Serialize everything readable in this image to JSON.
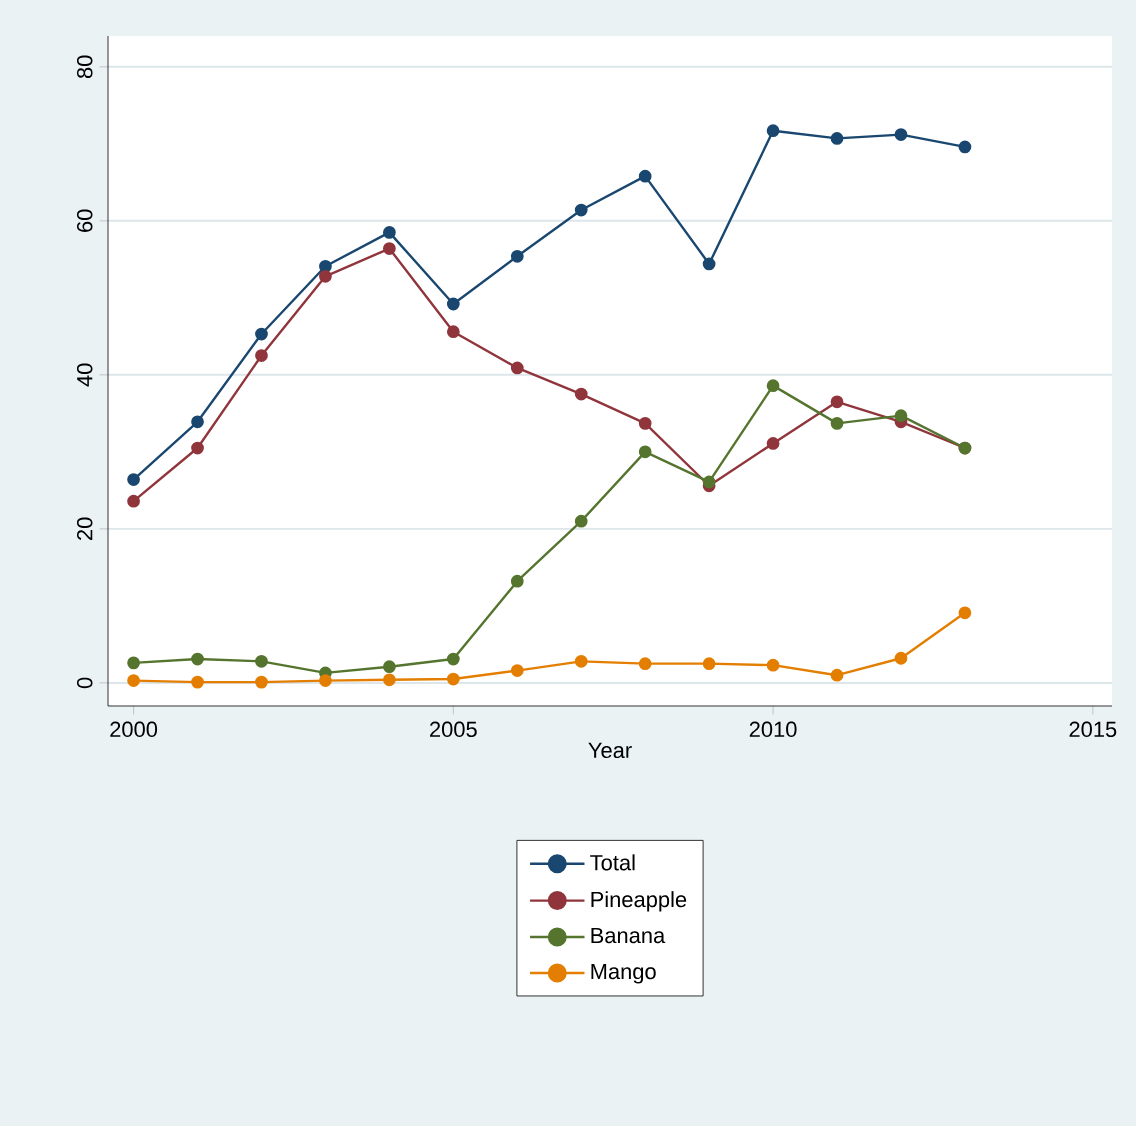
{
  "chart_data": {
    "type": "line",
    "xlabel": "Year",
    "x": [
      2000,
      2001,
      2002,
      2003,
      2004,
      2005,
      2006,
      2007,
      2008,
      2009,
      2010,
      2011,
      2012,
      2013
    ],
    "series": [
      {
        "name": "Total",
        "color": "#1a476f",
        "values": [
          26.4,
          33.9,
          45.3,
          54.1,
          58.5,
          49.2,
          55.4,
          61.4,
          65.8,
          54.4,
          71.7,
          70.7,
          71.2,
          69.6
        ]
      },
      {
        "name": "Pineapple",
        "color": "#90353b",
        "values": [
          23.6,
          30.5,
          42.5,
          52.8,
          56.4,
          45.6,
          40.9,
          37.5,
          33.7,
          25.6,
          31.1,
          36.5,
          33.9,
          30.5
        ]
      },
      {
        "name": "Banana",
        "color": "#55752f",
        "values": [
          2.6,
          3.1,
          2.8,
          1.3,
          2.1,
          3.1,
          13.2,
          21.0,
          30.0,
          26.1,
          38.6,
          33.7,
          34.7,
          30.5
        ]
      },
      {
        "name": "Mango",
        "color": "#e37e00",
        "values": [
          0.3,
          0.1,
          0.1,
          0.3,
          0.4,
          0.5,
          1.6,
          2.8,
          2.5,
          2.5,
          2.3,
          1.0,
          3.2,
          9.1
        ]
      }
    ],
    "xlim": [
      1999.6,
      2015.3
    ],
    "ylim": [
      -3,
      84
    ],
    "xticks": [
      2000,
      2005,
      2010,
      2015
    ],
    "yticks": [
      0,
      20,
      40,
      60,
      80
    ],
    "grid": "y",
    "legend": "bottom",
    "marker": "circle",
    "line_style": "solid"
  }
}
